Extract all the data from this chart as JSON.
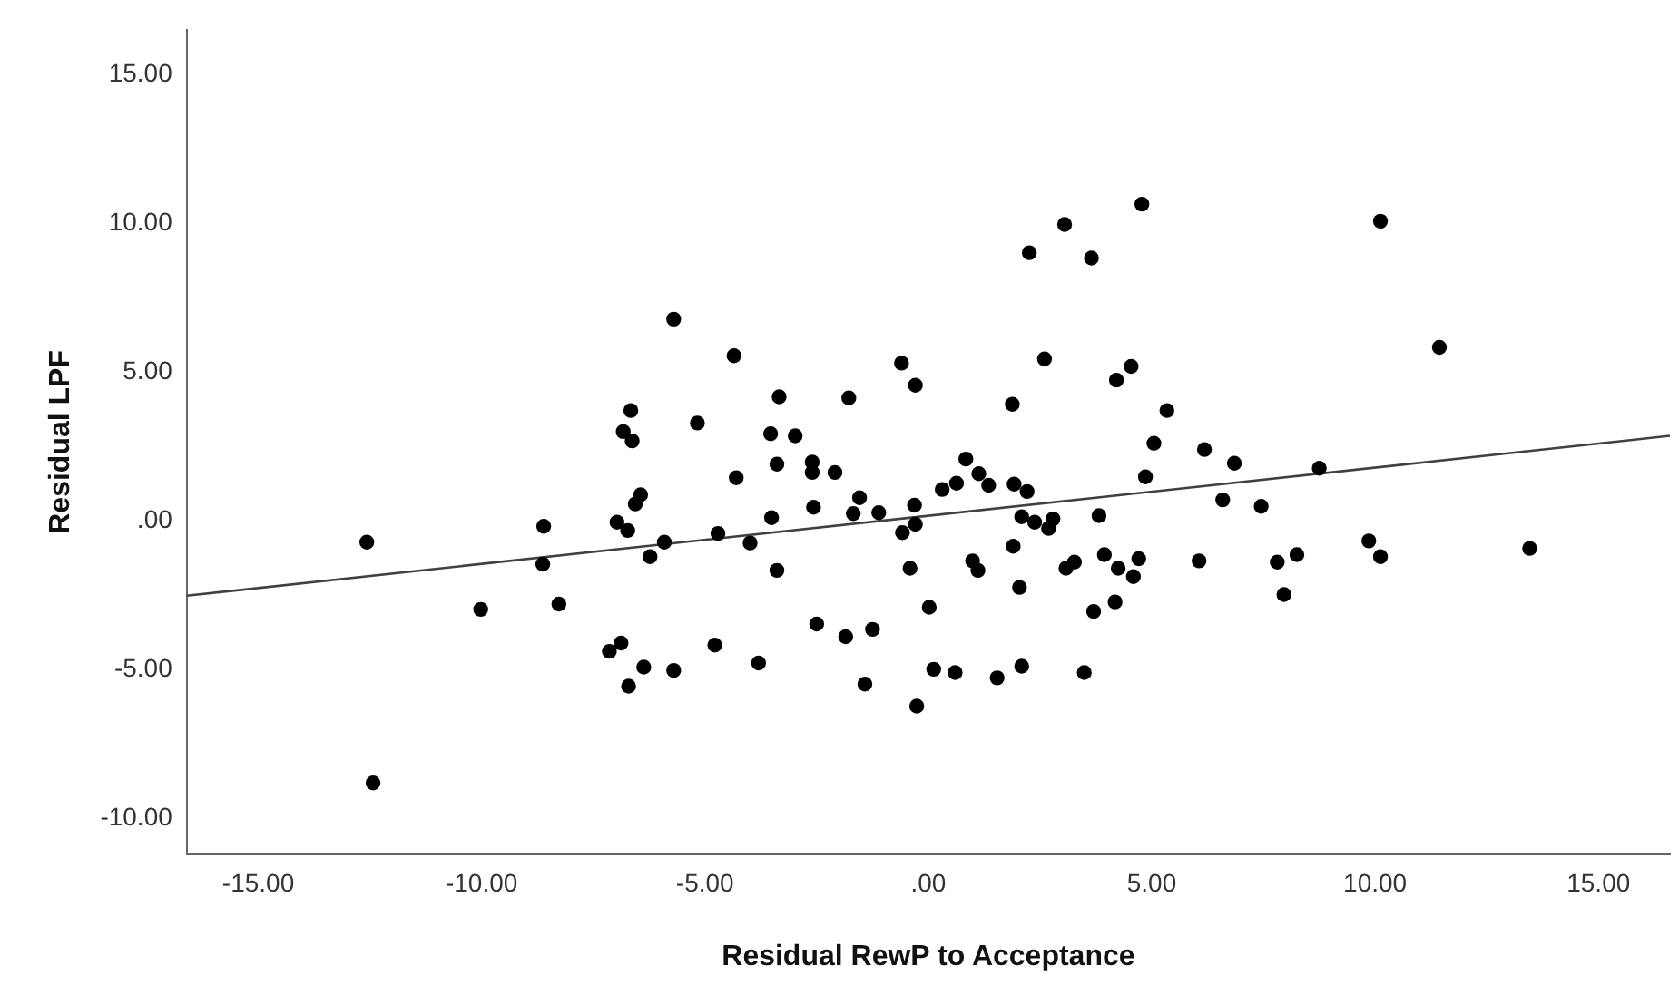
{
  "chart_data": {
    "type": "scatter",
    "xlabel": "Residual RewP to Acceptance",
    "ylabel": "Residual LPF",
    "xlim": [
      -16.6,
      16.6
    ],
    "ylim": [
      -11.2,
      16.5
    ],
    "xticks": [
      {
        "value": -15,
        "label": "-15.00"
      },
      {
        "value": -10,
        "label": "-10.00"
      },
      {
        "value": -5,
        "label": "-5.00"
      },
      {
        "value": 0,
        "label": ".00"
      },
      {
        "value": 5,
        "label": "5.00"
      },
      {
        "value": 10,
        "label": "10.00"
      },
      {
        "value": 15,
        "label": "15.00"
      }
    ],
    "yticks": [
      {
        "value": -10,
        "label": "-10.00"
      },
      {
        "value": -5,
        "label": "-5.00"
      },
      {
        "value": 0,
        "label": ".00"
      },
      {
        "value": 5,
        "label": "5.00"
      },
      {
        "value": 10,
        "label": "10.00"
      },
      {
        "value": 15,
        "label": "15.00"
      }
    ],
    "grid": false,
    "legend": false,
    "marker": "circle",
    "series": [
      {
        "type": "scatter",
        "color": "#000000",
        "x": [
          -12.57,
          -12.43,
          -10.02,
          -8.61,
          -8.63,
          -8.27,
          -7.14,
          -6.88,
          -6.97,
          -6.73,
          -6.83,
          -6.66,
          -6.63,
          -6.56,
          -6.44,
          -6.71,
          -6.37,
          -6.23,
          -5.91,
          -5.7,
          -5.7,
          -5.17,
          -4.71,
          -4.78,
          -4.35,
          -4.3,
          -3.99,
          -3.8,
          -3.53,
          -3.51,
          -3.39,
          -3.39,
          -3.34,
          -2.98,
          -2.6,
          -2.6,
          -2.57,
          -2.5,
          -2.09,
          -1.85,
          -1.78,
          -1.68,
          -1.54,
          -1.42,
          -1.25,
          -1.11,
          -0.6,
          -0.58,
          -0.41,
          -0.31,
          -0.29,
          -0.29,
          -0.26,
          0.02,
          0.12,
          0.31,
          0.6,
          0.63,
          0.84,
          0.99,
          1.11,
          1.13,
          1.35,
          1.54,
          1.88,
          1.9,
          1.92,
          2.04,
          2.09,
          2.09,
          2.21,
          2.26,
          2.38,
          2.6,
          2.69,
          2.79,
          3.05,
          3.08,
          3.27,
          3.49,
          3.65,
          3.7,
          3.82,
          3.94,
          4.18,
          4.21,
          4.25,
          4.54,
          4.59,
          4.71,
          4.78,
          4.86,
          5.05,
          5.34,
          6.06,
          6.18,
          6.59,
          6.85,
          7.45,
          7.81,
          7.96,
          8.25,
          8.75,
          9.86,
          10.12,
          10.12,
          11.44,
          13.46
        ],
        "values": [
          -0.71,
          -8.8,
          -2.97,
          -0.18,
          -1.45,
          -2.79,
          -4.38,
          -4.1,
          -0.04,
          -0.32,
          3.0,
          3.71,
          2.69,
          0.57,
          0.88,
          -5.55,
          -4.91,
          -1.2,
          -0.71,
          6.78,
          -5.02,
          3.29,
          -0.42,
          -4.17,
          5.55,
          1.45,
          -0.74,
          -4.77,
          2.93,
          0.11,
          1.91,
          -1.66,
          4.17,
          2.86,
          1.98,
          1.63,
          0.46,
          -3.46,
          1.63,
          -3.89,
          4.13,
          0.25,
          0.78,
          -5.48,
          -3.64,
          0.28,
          5.3,
          -0.39,
          -1.59,
          0.53,
          -0.11,
          4.56,
          -6.22,
          -2.9,
          -4.98,
          1.06,
          -5.09,
          1.27,
          2.08,
          -1.34,
          -1.66,
          1.59,
          1.2,
          -5.27,
          3.92,
          -0.85,
          1.24,
          -2.23,
          0.14,
          -4.88,
          0.99,
          9.01,
          -0.04,
          5.44,
          -0.25,
          0.07,
          9.96,
          -1.59,
          -1.38,
          -5.09,
          8.83,
          -3.04,
          0.18,
          -1.13,
          -2.72,
          4.73,
          -1.59,
          5.19,
          -1.87,
          -1.27,
          10.64,
          1.48,
          2.61,
          3.71,
          -1.34,
          2.4,
          0.71,
          1.94,
          0.49,
          -1.38,
          -2.47,
          -1.13,
          1.77,
          -0.67,
          10.07,
          -1.2,
          5.83,
          -0.92
        ]
      },
      {
        "type": "line",
        "color": "#404040",
        "marker": "none",
        "x": [
          -16.6,
          16.6
        ],
        "values": [
          -2.51,
          2.86
        ]
      }
    ]
  }
}
